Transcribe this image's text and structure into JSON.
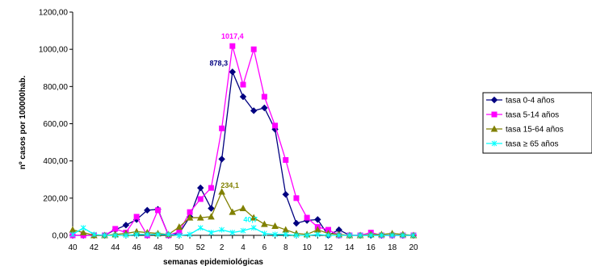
{
  "chart_data": {
    "type": "line",
    "xlabel": "semanas epidemiológicas",
    "ylabel": "nº casos por 100000hab.",
    "ylim": [
      0,
      1200
    ],
    "yticks": [
      "0,00",
      "200,00",
      "400,00",
      "600,00",
      "800,00",
      "1000,00",
      "1200,00"
    ],
    "x_tick_labels": [
      "40",
      "42",
      "44",
      "46",
      "48",
      "50",
      "52",
      "2",
      "4",
      "6",
      "8",
      "10",
      "12",
      "14",
      "16",
      "18",
      "20"
    ],
    "weeks": [
      "40",
      "41",
      "42",
      "43",
      "44",
      "45",
      "46",
      "47",
      "48",
      "49",
      "50",
      "51",
      "52",
      "1",
      "2",
      "3",
      "4",
      "5",
      "6",
      "7",
      "8",
      "9",
      "10",
      "11",
      "12",
      "13",
      "14",
      "15",
      "16",
      "17",
      "18",
      "19",
      "20"
    ],
    "grid": false,
    "legend_position": "right",
    "series": [
      {
        "name": "tasa 0-4 años",
        "color": "#000080",
        "marker": "diamond",
        "values": [
          0,
          0,
          0,
          0,
          30,
          55,
          85,
          135,
          140,
          0,
          10,
          100,
          255,
          145,
          410,
          878.3,
          745,
          670,
          685,
          570,
          220,
          65,
          80,
          85,
          0,
          30,
          0,
          0,
          0,
          0,
          0,
          0,
          0
        ]
      },
      {
        "name": "tasa 5-14 años",
        "color": "#FF00FF",
        "marker": "square",
        "values": [
          0,
          0,
          0,
          0,
          35,
          15,
          100,
          0,
          135,
          0,
          20,
          125,
          195,
          255,
          575,
          1017.4,
          810,
          1000,
          745,
          590,
          405,
          200,
          95,
          45,
          30,
          0,
          0,
          0,
          15,
          0,
          0,
          0,
          0
        ]
      },
      {
        "name": "tasa 15-64 años",
        "color": "#808000",
        "marker": "triangle",
        "values": [
          30,
          15,
          0,
          0,
          5,
          10,
          20,
          15,
          10,
          5,
          45,
          95,
          95,
          100,
          234.1,
          125,
          145,
          95,
          60,
          50,
          30,
          10,
          5,
          30,
          10,
          5,
          0,
          0,
          5,
          5,
          10,
          5,
          0
        ]
      },
      {
        "name": "tasa ≥ 65 años",
        "color": "#00FFFF",
        "marker": "x",
        "values": [
          5,
          40,
          5,
          0,
          0,
          0,
          5,
          5,
          5,
          5,
          0,
          5,
          40,
          15,
          30,
          15,
          25,
          40.7,
          10,
          5,
          5,
          0,
          0,
          5,
          0,
          0,
          0,
          0,
          0,
          0,
          0,
          0,
          0
        ]
      }
    ],
    "annotations": [
      {
        "text": "1017,4",
        "series": 1,
        "point_index": 15,
        "color": "#FF00FF"
      },
      {
        "text": "878,3",
        "series": 0,
        "point_index": 15,
        "color": "#000080"
      },
      {
        "text": "234,1",
        "series": 2,
        "point_index": 14,
        "color": "#808000"
      },
      {
        "text": "40,7",
        "series": 3,
        "point_index": 17,
        "color": "#00FFFF"
      }
    ]
  }
}
